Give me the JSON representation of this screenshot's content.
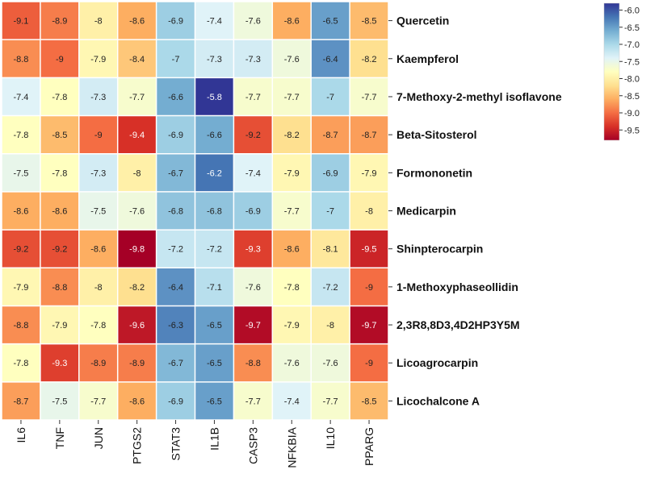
{
  "chart_data": {
    "type": "heatmap",
    "title": "",
    "xlabel": "",
    "ylabel": "",
    "columns": [
      "IL6",
      "TNF",
      "JUN",
      "PTGS2",
      "STAT3",
      "IL1B",
      "CASP3",
      "NFKBIA",
      "IL10",
      "PPARG"
    ],
    "rows": [
      "Quercetin",
      "Kaempferol",
      "7-Methoxy-2-methyl isoflavone",
      "Beta-Sitosterol",
      "Formononetin",
      "Medicarpin",
      "Shinpterocarpin",
      "1-Methoxyphaseollidin",
      "2,3R8,8D3,4D2HP3Y5M",
      "Licoagrocarpin",
      "Licochalcone A"
    ],
    "values": [
      [
        -9.1,
        -8.9,
        -8,
        -8.6,
        -6.9,
        -7.4,
        -7.6,
        -8.6,
        -6.5,
        -8.5
      ],
      [
        -8.8,
        -9,
        -7.9,
        -8.4,
        -7,
        -7.3,
        -7.3,
        -7.6,
        -6.4,
        -8.2
      ],
      [
        -7.4,
        -7.8,
        -7.3,
        -7.7,
        -6.6,
        -5.8,
        -7.7,
        -7.7,
        -7,
        -7.7
      ],
      [
        -7.8,
        -8.5,
        -9,
        -9.4,
        -6.9,
        -6.6,
        -9.2,
        -8.2,
        -8.7,
        -8.7
      ],
      [
        -7.5,
        -7.8,
        -7.3,
        -8,
        -6.7,
        -6.2,
        -7.4,
        -7.9,
        -6.9,
        -7.9
      ],
      [
        -8.6,
        -8.6,
        -7.5,
        -7.6,
        -6.8,
        -6.8,
        -6.9,
        -7.7,
        -7,
        -8
      ],
      [
        -9.2,
        -9.2,
        -8.6,
        -9.8,
        -7.2,
        -7.2,
        -9.3,
        -8.6,
        -8.1,
        -9.5
      ],
      [
        -7.9,
        -8.8,
        -8,
        -8.2,
        -6.4,
        -7.1,
        -7.6,
        -7.8,
        -7.2,
        -9
      ],
      [
        -8.8,
        -7.9,
        -7.8,
        -9.6,
        -6.3,
        -6.5,
        -9.7,
        -7.9,
        -8,
        -9.7
      ],
      [
        -7.8,
        -9.3,
        -8.9,
        -8.9,
        -6.7,
        -6.5,
        -8.8,
        -7.6,
        -7.6,
        -9
      ],
      [
        -8.7,
        -7.5,
        -7.7,
        -8.6,
        -6.9,
        -6.5,
        -7.7,
        -7.4,
        -7.7,
        -8.5
      ]
    ],
    "color_range": [
      -9.8,
      -5.8
    ],
    "colorbar": {
      "ticks": [
        -6.0,
        -6.5,
        -7.0,
        -7.5,
        -8.0,
        -8.5,
        -9.0,
        -9.5
      ],
      "tick_labels": [
        "-6.0",
        "-6.5",
        "-7.0",
        "-7.5",
        "-8.0",
        "-8.5",
        "-9.0",
        "-9.5"
      ],
      "colormap": [
        "#a50026",
        "#d73027",
        "#f46d43",
        "#fdae61",
        "#fee090",
        "#ffffbf",
        "#e0f3f8",
        "#abd9e9",
        "#74add1",
        "#4575b4",
        "#313695"
      ]
    }
  }
}
